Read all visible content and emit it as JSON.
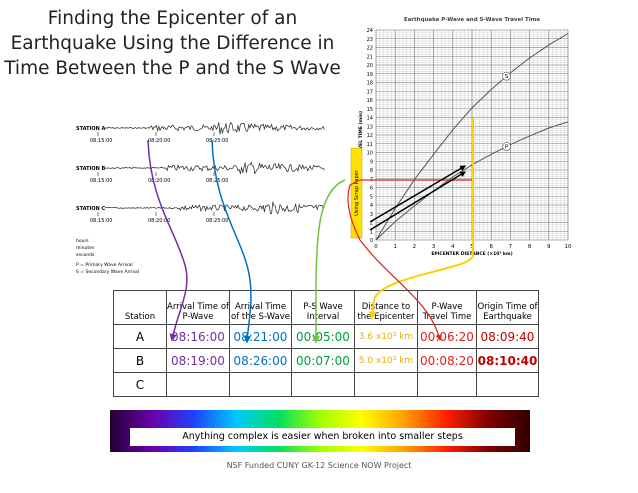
{
  "title_lines": [
    "Finding the Epicenter of an",
    "Earthquake Using the Difference in",
    "Time Between the P and the S Wave"
  ],
  "seismogram": {
    "stations": [
      {
        "label": "STATION A",
        "times": [
          "08:15:00",
          "08:20:00",
          "08:25:00"
        ]
      },
      {
        "label": "STATION B",
        "times": [
          "08:15:00",
          "08:20:00",
          "08:25:00"
        ]
      },
      {
        "label": "STATION C",
        "times": [
          "08:15:00",
          "08:20:00",
          "08:25:00"
        ]
      }
    ],
    "legend": [
      "hours",
      "minutes",
      "seconds",
      "P = Primary Wave Arrival",
      "S = Secondary Wave Arrival"
    ]
  },
  "graph": {
    "title": "Earthquake P-Wave and S-Wave Travel Time",
    "y_label": "TRAVEL TIME (min)",
    "x_label": "EPICENTER DISTANCE (×10³ km)",
    "scrap_label": "Using Scrap Paper",
    "xlim": [
      0,
      10
    ],
    "ylim": [
      0,
      24
    ],
    "xticks": [
      0,
      1,
      2,
      3,
      4,
      5,
      6,
      7,
      8,
      9,
      10
    ],
    "yticks": [
      0,
      1,
      2,
      3,
      4,
      5,
      6,
      7,
      8,
      9,
      10,
      11,
      12,
      13,
      14,
      15,
      16,
      17,
      18,
      19,
      20,
      21,
      22,
      23,
      24
    ],
    "x": [
      0,
      1,
      2,
      3,
      4,
      5,
      6,
      7,
      8,
      9,
      10
    ],
    "series": [
      {
        "name": "S",
        "color": "#555555",
        "values": [
          0,
          3.6,
          6.9,
          9.8,
          12.6,
          15.1,
          17.2,
          19.1,
          20.8,
          22.3,
          23.6
        ]
      },
      {
        "name": "P",
        "color": "#555555",
        "values": [
          0,
          2.1,
          3.9,
          5.6,
          7.2,
          8.6,
          9.8,
          10.9,
          11.9,
          12.8,
          13.5
        ]
      }
    ]
  },
  "table": {
    "header": [
      "Station",
      "Arrival Time of P-Wave",
      "Arrival Time of the S-Wave",
      "P-S Wave Interval",
      "Distance to the Epicenter",
      "P-Wave Travel Time",
      "Origin Time of Earthquake"
    ],
    "rows": [
      [
        "A",
        "08:16:00",
        "08:21:00",
        "00:05:00",
        "3.6 x10³ km",
        "00:06:20",
        "08:09:40"
      ],
      [
        "B",
        "08:19:00",
        "08:26:00",
        "00:07:00",
        "5.0 x10³ km",
        "00:08:20",
        "08:10:40"
      ],
      [
        "C"
      ]
    ]
  },
  "banner": "Anything complex is easier when broken into smaller steps",
  "footer": "NSF Funded CUNY GK-12 Science NOW Project"
}
